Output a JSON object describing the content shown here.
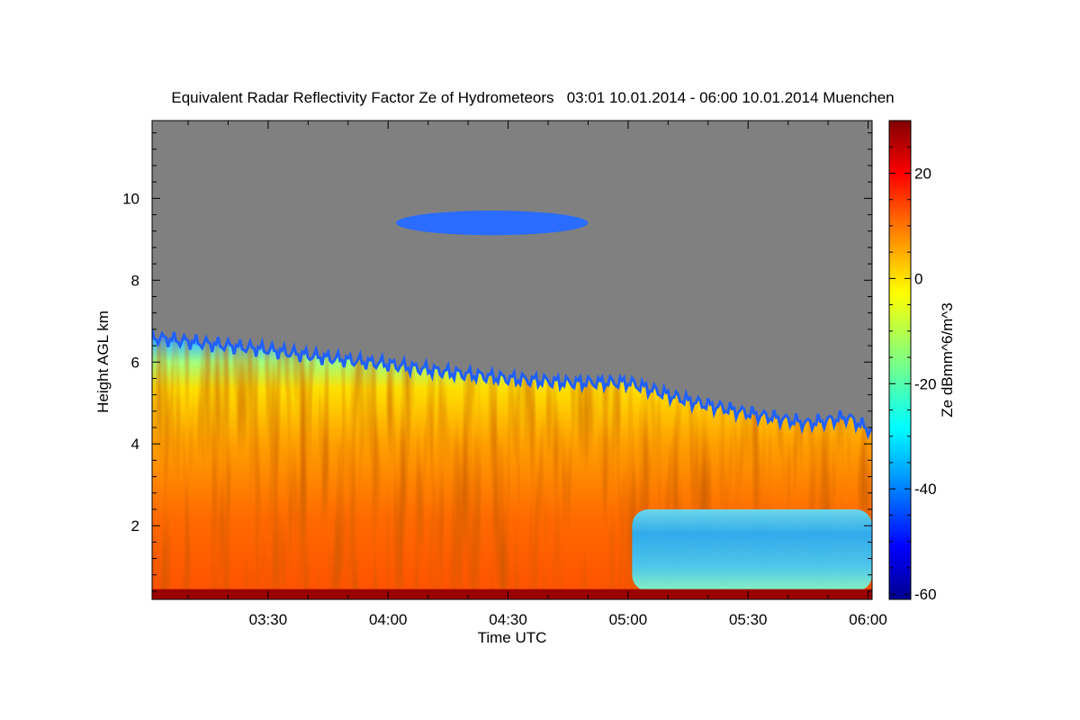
{
  "chart_data": {
    "type": "heatmap",
    "title": "Equivalent Radar Reflectivity Factor Ze of Hydrometeors   03:01 10.01.2014 - 06:00 10.01.2014 Muenchen",
    "xlabel": "Time UTC",
    "ylabel": "Height AGL km",
    "colorbar_label": "Ze dBmm^6/m^3",
    "x_ticks": [
      "03:30",
      "04:00",
      "04:30",
      "05:00",
      "05:30",
      "06:00"
    ],
    "x_tick_minutes": [
      210,
      240,
      270,
      300,
      330,
      360
    ],
    "xlim_minutes": [
      181,
      361
    ],
    "y_ticks": [
      2,
      4,
      6,
      8,
      10
    ],
    "ylim": [
      0.2,
      11.9
    ],
    "colorbar_ticks": [
      20,
      0,
      -20,
      -40,
      -60
    ],
    "colorbar_range": [
      -61,
      30
    ],
    "background_color": "#808080",
    "colormap": [
      "#00008f",
      "#0000ff",
      "#0080ff",
      "#00ffff",
      "#80ff80",
      "#ffff00",
      "#ff8000",
      "#ff0000",
      "#800000"
    ],
    "echo_top_km": [
      {
        "t": 181,
        "h": 6.6
      },
      {
        "t": 195,
        "h": 6.45
      },
      {
        "t": 210,
        "h": 6.3
      },
      {
        "t": 225,
        "h": 6.1
      },
      {
        "t": 240,
        "h": 5.95
      },
      {
        "t": 255,
        "h": 5.75
      },
      {
        "t": 270,
        "h": 5.6
      },
      {
        "t": 285,
        "h": 5.5
      },
      {
        "t": 300,
        "h": 5.5
      },
      {
        "t": 315,
        "h": 5.05
      },
      {
        "t": 330,
        "h": 4.75
      },
      {
        "t": 345,
        "h": 4.5
      },
      {
        "t": 355,
        "h": 4.65
      },
      {
        "t": 361,
        "h": 4.3
      }
    ],
    "upper_cloud": {
      "t_start": 242,
      "t_end": 290,
      "h_min": 9.1,
      "h_max": 9.7,
      "ze": -40
    },
    "low_weak_zone": {
      "t_start": 301,
      "t_end": 361,
      "h_min": 0.4,
      "h_max": 2.4,
      "ze": -25
    },
    "bright_band": {
      "h_min": 0.2,
      "h_max": 0.45,
      "ze": 28
    }
  }
}
